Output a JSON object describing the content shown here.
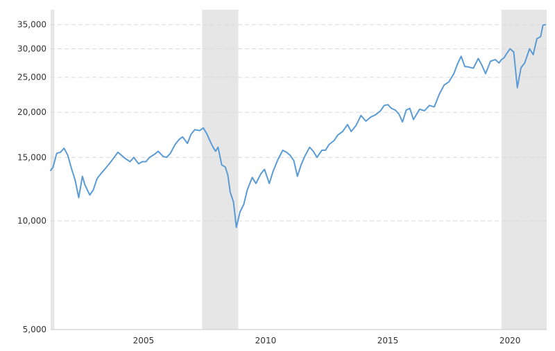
{
  "chart_data": {
    "type": "line",
    "title": "",
    "xlabel": "",
    "ylabel": "",
    "y_scale": "log",
    "ylim": [
      5000,
      38500
    ],
    "xlim": [
      2001.2,
      2021.5
    ],
    "grid": true,
    "legend": "none",
    "y_ticks": [
      {
        "value": 5000,
        "label": "5,000"
      },
      {
        "value": 10000,
        "label": "10,000"
      },
      {
        "value": 15000,
        "label": "15,000"
      },
      {
        "value": 20000,
        "label": "20,000"
      },
      {
        "value": 25000,
        "label": "25,000"
      },
      {
        "value": 30000,
        "label": "30,000"
      },
      {
        "value": 35000,
        "label": "35,000"
      }
    ],
    "x_ticks": [
      {
        "value": 2005,
        "label": "2005"
      },
      {
        "value": 2010,
        "label": "2010"
      },
      {
        "value": 2015,
        "label": "2015"
      },
      {
        "value": 2020,
        "label": "2020"
      }
    ],
    "shaded_periods": [
      {
        "start": 2001.2,
        "end": 2001.35
      },
      {
        "start": 2007.4,
        "end": 2008.88
      },
      {
        "start": 2019.65,
        "end": 2021.5
      }
    ],
    "series": [
      {
        "color": "#5b9bd5",
        "x": [
          2001.2,
          2001.3,
          2001.45,
          2001.6,
          2001.75,
          2001.9,
          2002.05,
          2002.2,
          2002.35,
          2002.5,
          2002.6,
          2002.8,
          2002.95,
          2003.1,
          2003.25,
          2003.45,
          2003.6,
          2003.8,
          2003.95,
          2004.1,
          2004.25,
          2004.45,
          2004.6,
          2004.8,
          2004.95,
          2005.1,
          2005.25,
          2005.45,
          2005.6,
          2005.8,
          2005.95,
          2006.1,
          2006.3,
          2006.45,
          2006.6,
          2006.8,
          2006.95,
          2007.1,
          2007.3,
          2007.45,
          2007.6,
          2007.75,
          2007.85,
          2007.95,
          2008.05,
          2008.2,
          2008.35,
          2008.45,
          2008.55,
          2008.68,
          2008.8,
          2008.95,
          2009.1,
          2009.25,
          2009.45,
          2009.6,
          2009.8,
          2009.95,
          2010.15,
          2010.3,
          2010.5,
          2010.7,
          2010.85,
          2011.0,
          2011.15,
          2011.3,
          2011.45,
          2011.6,
          2011.8,
          2011.95,
          2012.1,
          2012.3,
          2012.45,
          2012.6,
          2012.8,
          2012.95,
          2013.15,
          2013.35,
          2013.5,
          2013.7,
          2013.9,
          2014.1,
          2014.3,
          2014.5,
          2014.7,
          2014.85,
          2015.0,
          2015.15,
          2015.3,
          2015.45,
          2015.6,
          2015.75,
          2015.9,
          2016.05,
          2016.3,
          2016.5,
          2016.7,
          2016.9,
          2017.1,
          2017.3,
          2017.5,
          2017.7,
          2017.85,
          2018.0,
          2018.15,
          2018.3,
          2018.5,
          2018.7,
          2018.85,
          2019.0,
          2019.2,
          2019.4,
          2019.55,
          2019.65,
          2019.75,
          2019.85,
          2020.0,
          2020.15,
          2020.3,
          2020.45,
          2020.6,
          2020.8,
          2020.95,
          2021.1,
          2021.25,
          2021.35,
          2021.45
        ],
        "values": [
          13800,
          14100,
          15400,
          15500,
          15900,
          15200,
          14000,
          13000,
          11600,
          13300,
          12600,
          11800,
          12200,
          13100,
          13500,
          14000,
          14400,
          15000,
          15500,
          15200,
          14900,
          14600,
          15000,
          14400,
          14600,
          14600,
          15000,
          15300,
          15600,
          15100,
          15000,
          15400,
          16300,
          16800,
          17100,
          16400,
          17400,
          17900,
          17800,
          18100,
          17400,
          16500,
          16000,
          15600,
          16000,
          14300,
          14100,
          13400,
          12000,
          11300,
          9600,
          10600,
          11100,
          12200,
          13200,
          12700,
          13500,
          13900,
          12700,
          13700,
          14800,
          15700,
          15500,
          15200,
          14700,
          13300,
          14300,
          15100,
          16000,
          15600,
          15000,
          15700,
          15700,
          16300,
          16700,
          17300,
          17700,
          18500,
          17700,
          18400,
          19600,
          18900,
          19400,
          19700,
          20200,
          20900,
          21000,
          20500,
          20300,
          19800,
          18800,
          20300,
          20500,
          19100,
          20400,
          20200,
          20900,
          20700,
          22400,
          23800,
          24300,
          25600,
          27200,
          28600,
          26800,
          26700,
          26500,
          28200,
          27000,
          25600,
          27700,
          28000,
          27400,
          28000,
          28300,
          29000,
          30000,
          29400,
          23400,
          26600,
          27400,
          30000,
          28900,
          32000,
          32400,
          34900,
          35000
        ]
      }
    ]
  }
}
